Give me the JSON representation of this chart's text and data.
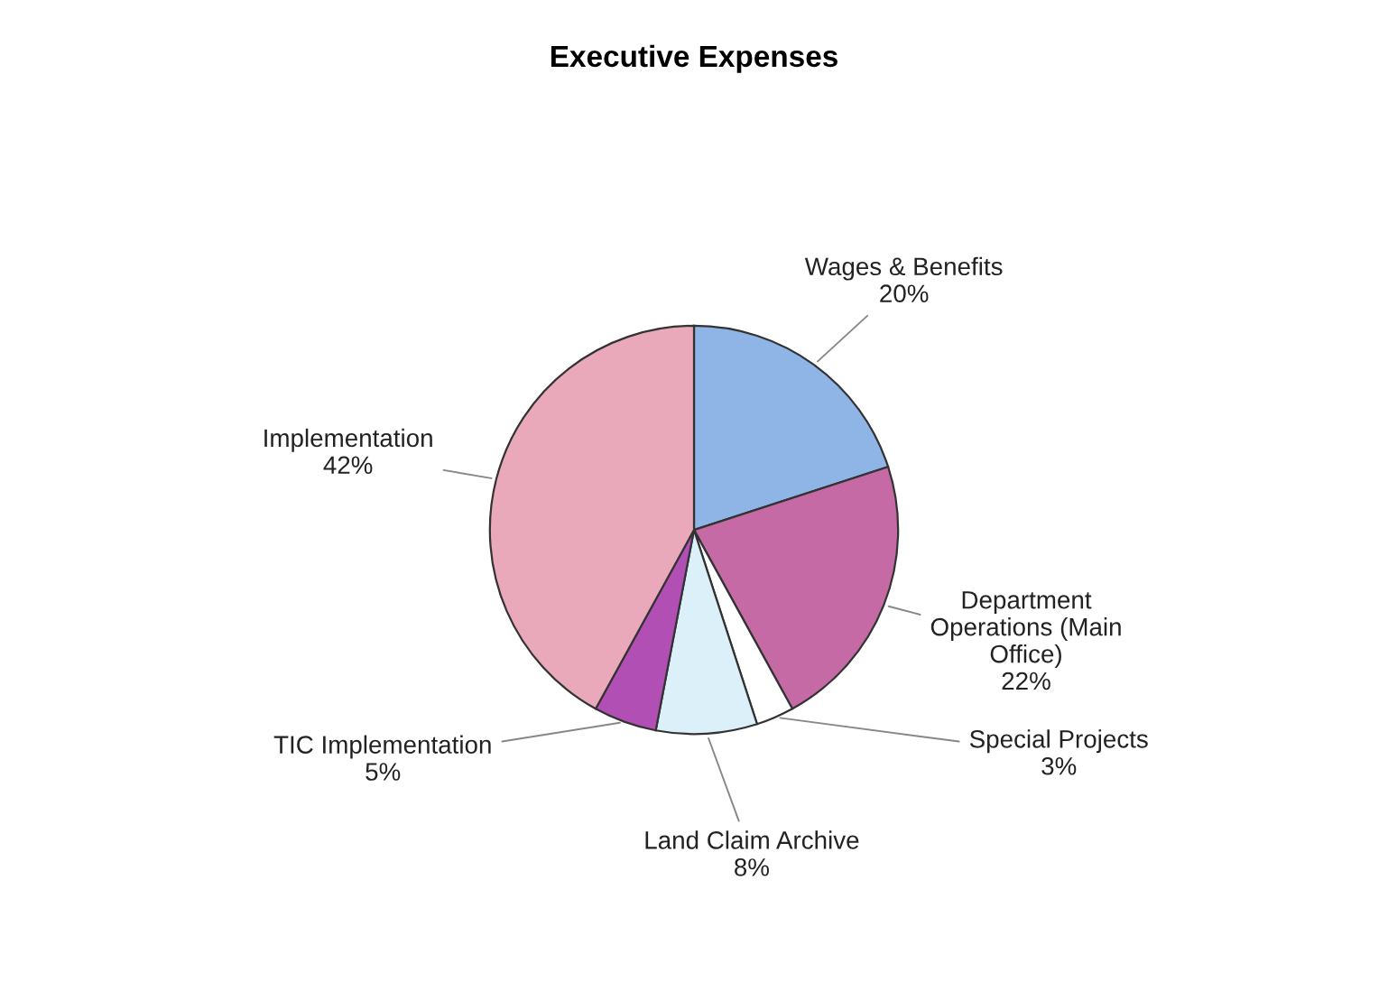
{
  "chart_data": {
    "type": "pie",
    "title": "Executive Expenses",
    "categories": [
      "Wages & Benefits",
      "Department Operations (Main Office)",
      "Special Projects",
      "Land Claim Archive",
      "TIC Implementation",
      "Implementation"
    ],
    "values": [
      20,
      22,
      3,
      8,
      5,
      42
    ],
    "value_labels": [
      "20%",
      "22%",
      "3%",
      "8%",
      "5%",
      "42%"
    ],
    "colors": [
      "#8fb4e6",
      "#c66aa6",
      "#ffffff",
      "#dcf0fa",
      "#b24fb4",
      "#e9a9ba"
    ],
    "legend": false
  }
}
